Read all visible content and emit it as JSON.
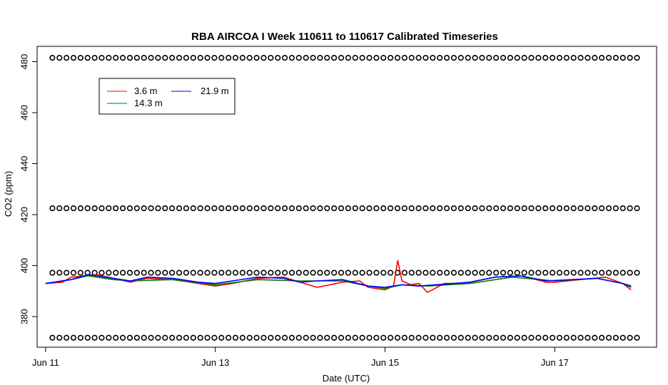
{
  "chart_data": {
    "type": "line",
    "title": "RBA AIRCOA I  Week 110611 to 110617  Calibrated Timeseries",
    "xlabel": "Date (UTC)",
    "ylabel": "CO2 (ppm)",
    "x_unit": "days (0 = Jun 11 00:00 UTC)",
    "xlim": [
      -0.1,
      7.2
    ],
    "ylim": [
      368,
      486
    ],
    "x_ticks": [
      {
        "value": 0,
        "label": "Jun 11"
      },
      {
        "value": 2,
        "label": "Jun 13"
      },
      {
        "value": 4,
        "label": "Jun 15"
      },
      {
        "value": 6,
        "label": "Jun 17"
      }
    ],
    "y_ticks": [
      380,
      400,
      420,
      440,
      460,
      480
    ],
    "grid": false,
    "legend": {
      "placement": "top-left",
      "entries": [
        {
          "name": "3.6 m",
          "color": "#ff0000"
        },
        {
          "name": "21.9 m",
          "color": "#0000ff"
        },
        {
          "name": "14.3 m",
          "color": "#008000"
        }
      ]
    },
    "series": [
      {
        "name": "3.6 m",
        "color": "#ff0000",
        "x": [
          0.0,
          0.2,
          0.3,
          0.5,
          0.6,
          0.8,
          1.0,
          1.2,
          1.5,
          1.8,
          2.0,
          2.2,
          2.5,
          2.8,
          3.0,
          3.2,
          3.5,
          3.7,
          3.8,
          4.0,
          4.1,
          4.15,
          4.2,
          4.3,
          4.4,
          4.5,
          4.7,
          4.9,
          5.0,
          5.3,
          5.6,
          5.9,
          6.0,
          6.3,
          6.6,
          6.8,
          6.9
        ],
        "values": [
          393.0,
          393.5,
          395.5,
          396.0,
          396.5,
          395.0,
          393.5,
          395.0,
          394.5,
          393.0,
          392.0,
          393.0,
          395.0,
          395.5,
          393.5,
          391.5,
          393.5,
          394.0,
          391.5,
          390.5,
          392.0,
          402.0,
          394.0,
          392.5,
          393.0,
          389.5,
          393.0,
          393.0,
          393.5,
          395.5,
          396.0,
          393.5,
          393.5,
          394.5,
          395.5,
          393.0,
          390.5
        ]
      },
      {
        "name": "14.3 m",
        "color": "#008000",
        "x": [
          0.0,
          0.3,
          0.5,
          0.8,
          1.0,
          1.5,
          2.0,
          2.5,
          3.0,
          3.5,
          3.8,
          4.0,
          4.2,
          4.5,
          5.0,
          5.5,
          6.0,
          6.5,
          6.8,
          6.9
        ],
        "values": [
          393.0,
          394.5,
          396.0,
          394.5,
          394.0,
          394.5,
          392.5,
          394.5,
          394.0,
          394.0,
          392.0,
          391.0,
          392.5,
          392.0,
          393.0,
          395.5,
          394.0,
          395.0,
          393.0,
          391.5
        ]
      },
      {
        "name": "21.9 m",
        "color": "#0000ff",
        "x": [
          0.0,
          0.3,
          0.5,
          0.8,
          1.0,
          1.2,
          1.5,
          1.8,
          2.0,
          2.2,
          2.5,
          2.8,
          3.0,
          3.2,
          3.5,
          3.8,
          4.0,
          4.2,
          4.4,
          4.6,
          4.8,
          5.0,
          5.3,
          5.6,
          5.9,
          6.2,
          6.5,
          6.8,
          6.9
        ],
        "values": [
          393.0,
          394.5,
          396.5,
          395.0,
          394.0,
          395.5,
          395.0,
          393.5,
          393.0,
          394.0,
          395.5,
          395.0,
          393.5,
          394.0,
          394.5,
          392.0,
          391.5,
          392.5,
          392.0,
          392.5,
          393.0,
          393.5,
          395.5,
          396.0,
          394.0,
          394.5,
          395.0,
          393.0,
          392.0
        ]
      }
    ],
    "marker_rows": [
      {
        "name": "calibration-high",
        "y": 481.5
      },
      {
        "name": "calibration-mid-high",
        "y": 422.5
      },
      {
        "name": "calibration-mid-low",
        "y": 397.2
      },
      {
        "name": "calibration-low",
        "y": 371.7
      }
    ],
    "marker_symbol": "open-circle"
  }
}
